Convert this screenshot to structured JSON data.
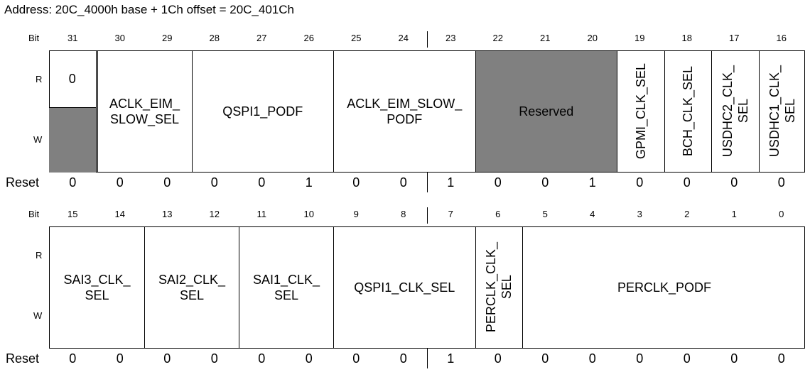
{
  "address": "Address: 20C_4000h base + 1Ch offset = 20C_401Ch",
  "labels": {
    "bit": "Bit",
    "r": "R",
    "w": "W",
    "reset": "Reset"
  },
  "upper": {
    "bits": [
      "31",
      "30",
      "29",
      "28",
      "27",
      "26",
      "25",
      "24",
      "23",
      "22",
      "21",
      "20",
      "19",
      "18",
      "17",
      "16"
    ],
    "reset": [
      "0",
      "0",
      "0",
      "0",
      "0",
      "1",
      "0",
      "0",
      "1",
      "0",
      "0",
      "1",
      "0",
      "0",
      "0",
      "0"
    ],
    "read_only_value": "0",
    "fields": [
      {
        "name": "ACLK_EIM_\nSLOW_SEL"
      },
      {
        "name": "QSPI1_PODF"
      },
      {
        "name": "ACLK_EIM_SLOW_\nPODF"
      },
      {
        "name": "Reserved"
      },
      {
        "name": "GPMI_CLK_SEL"
      },
      {
        "name": "BCH_CLK_SEL"
      },
      {
        "name": "USDHC2_CLK_\nSEL"
      },
      {
        "name": "USDHC1_CLK_\nSEL"
      }
    ]
  },
  "lower": {
    "bits": [
      "15",
      "14",
      "13",
      "12",
      "11",
      "10",
      "9",
      "8",
      "7",
      "6",
      "5",
      "4",
      "3",
      "2",
      "1",
      "0"
    ],
    "reset": [
      "0",
      "0",
      "0",
      "0",
      "0",
      "0",
      "0",
      "0",
      "1",
      "0",
      "0",
      "0",
      "0",
      "0",
      "0",
      "0"
    ],
    "fields": [
      {
        "name": "SAI3_CLK_\nSEL"
      },
      {
        "name": "SAI2_CLK_\nSEL"
      },
      {
        "name": "SAI1_CLK_\nSEL"
      },
      {
        "name": "QSPI1_CLK_SEL"
      },
      {
        "name": "PERCLK_CLK_\nSEL"
      },
      {
        "name": "PERCLK_PODF"
      }
    ]
  }
}
